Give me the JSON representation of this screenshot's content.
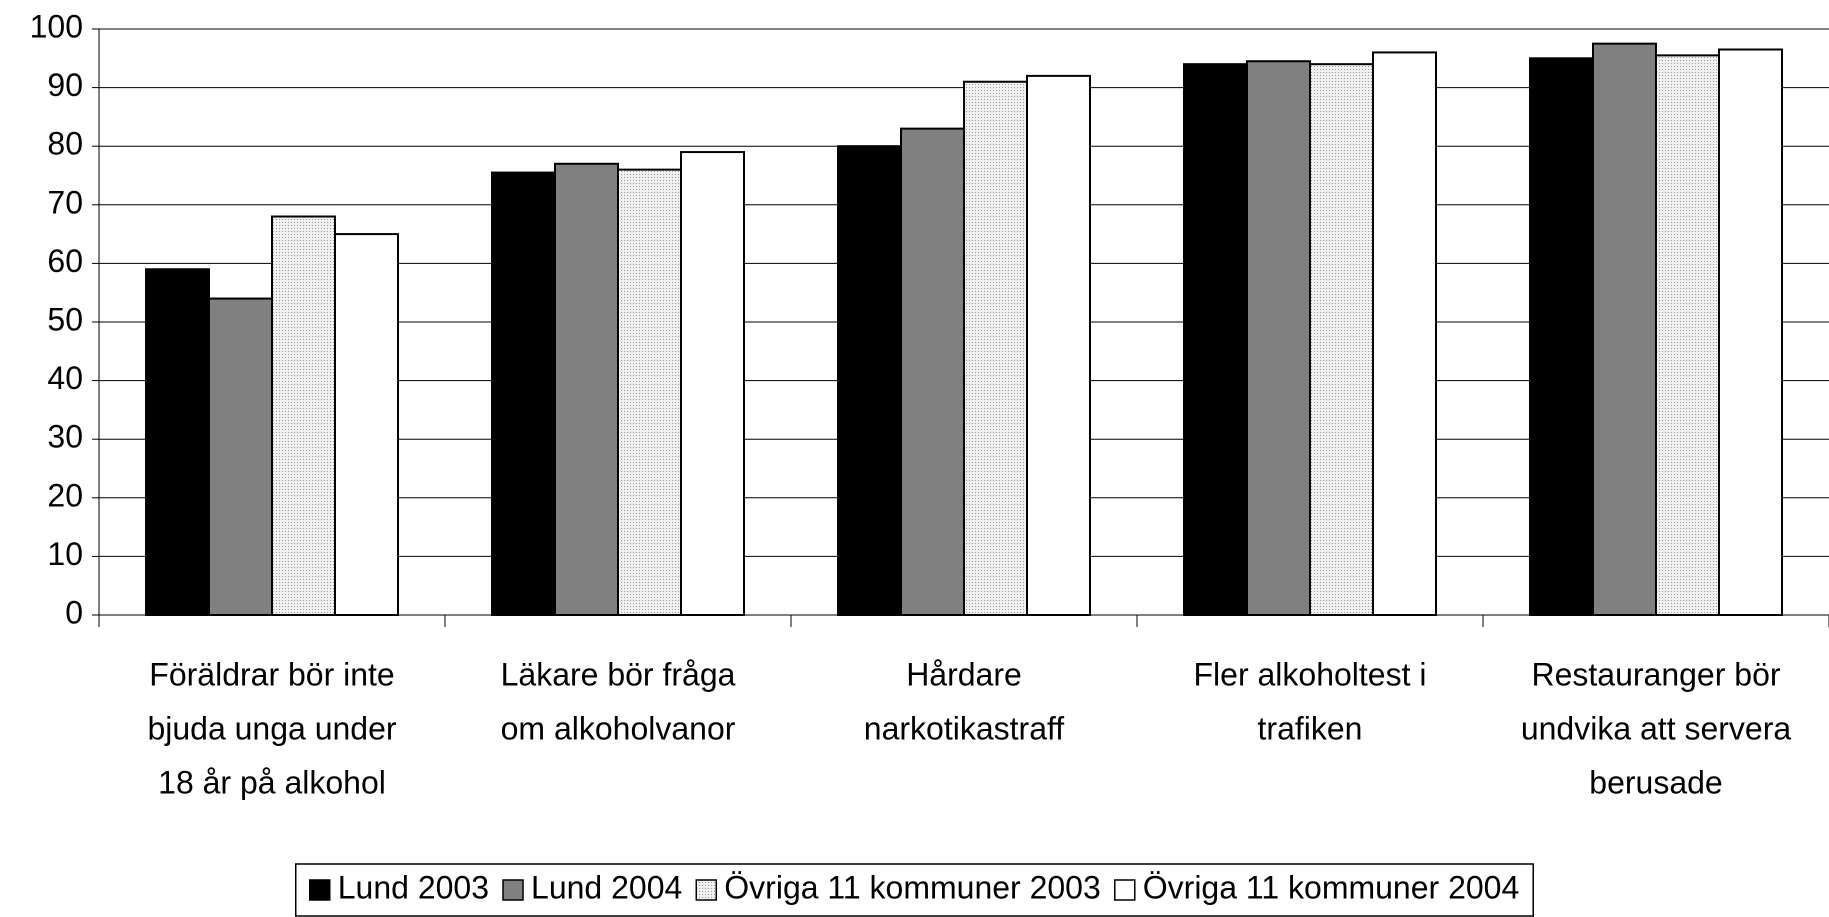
{
  "chart_data": {
    "type": "bar",
    "categories": [
      [
        "Föräldrar bör inte",
        "bjuda unga under",
        "18 år på alkohol"
      ],
      [
        "Läkare bör fråga",
        "om alkoholvanor"
      ],
      [
        "Hårdare",
        "narkotikastraff"
      ],
      [
        "Fler alkoholtest i",
        "trafiken"
      ],
      [
        "Restauranger bör",
        "undvika att servera",
        "berusade"
      ]
    ],
    "series": [
      {
        "name": "Lund 2003",
        "color": "#000000",
        "values": [
          59,
          75.5,
          80,
          94,
          95
        ]
      },
      {
        "name": "Lund 2004",
        "color": "#808080",
        "values": [
          54,
          77,
          83,
          94.5,
          97.5
        ]
      },
      {
        "name": "Övriga 11 kommuner 2003",
        "color": "#dcdcdc",
        "values": [
          68,
          76,
          91,
          94,
          95.5
        ]
      },
      {
        "name": "Övriga 11 kommuner 2004",
        "color": "#ffffff",
        "values": [
          65,
          79,
          92,
          96,
          96.5
        ]
      }
    ],
    "ylim": [
      0,
      100
    ],
    "yticks": [
      0,
      10,
      20,
      30,
      40,
      50,
      60,
      70,
      80,
      90,
      100
    ],
    "grid": true,
    "legend": "bottom"
  }
}
